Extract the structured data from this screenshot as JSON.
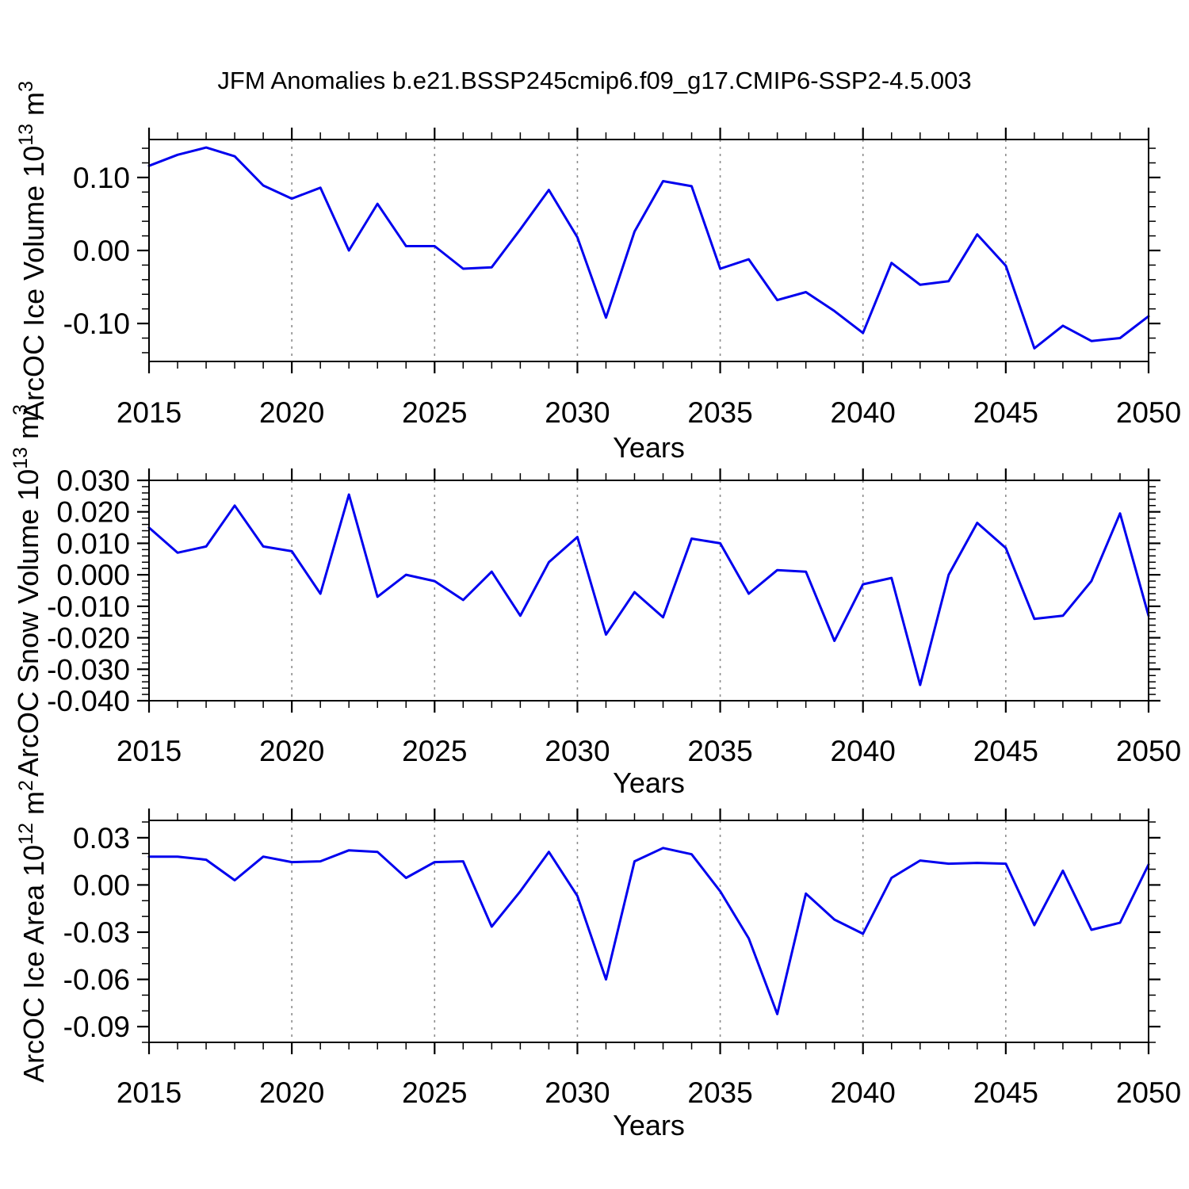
{
  "title": "JFM Anomalies b.e21.BSSP245cmip6.f09_g17.CMIP6-SSP2-4.5.003",
  "colors": {
    "line": "#0000EE",
    "grid": "#8C8C8C",
    "axis": "#000000"
  },
  "x_axis": {
    "label": "Years",
    "range": [
      2015,
      2050
    ],
    "years": [
      2015,
      2016,
      2017,
      2018,
      2019,
      2020,
      2021,
      2022,
      2023,
      2024,
      2025,
      2026,
      2027,
      2028,
      2029,
      2030,
      2031,
      2032,
      2033,
      2034,
      2035,
      2036,
      2037,
      2038,
      2039,
      2040,
      2041,
      2042,
      2043,
      2044,
      2045,
      2046,
      2047,
      2048,
      2049,
      2050
    ],
    "major_tick_years": [
      2015,
      2020,
      2025,
      2030,
      2035,
      2040,
      2045,
      2050
    ],
    "tick_labels": [
      "2015",
      "2020",
      "2025",
      "2030",
      "2035",
      "2040",
      "2045",
      "2050"
    ],
    "minor_tick_step": 1,
    "grid_years": [
      2020,
      2025,
      2030,
      2035,
      2040,
      2045
    ]
  },
  "chart_data": [
    {
      "id": "ice-volume",
      "type": "line",
      "xlabel": "Years",
      "ylabel": "ArcOC Ice Volume 10^13 m^3",
      "ylabel_rich": [
        [
          "ArcOC Ice Volume 10",
          false
        ],
        [
          "13",
          true
        ],
        [
          " m",
          false
        ],
        [
          "3",
          true
        ]
      ],
      "line_color": "#0000EE",
      "grid_on": true,
      "ylim": [
        -0.152,
        0.152
      ],
      "y_minor_step": 0.02,
      "yticks": [
        {
          "v": 0.1,
          "label": "0.10"
        },
        {
          "v": 0.0,
          "label": "0.00"
        },
        {
          "v": -0.1,
          "label": "-0.10"
        }
      ],
      "values": [
        0.116,
        0.131,
        0.141,
        0.129,
        0.089,
        0.071,
        0.086,
        0.0,
        0.064,
        0.006,
        0.006,
        -0.025,
        -0.023,
        0.029,
        0.083,
        0.018,
        -0.092,
        0.026,
        0.095,
        0.088,
        -0.025,
        -0.012,
        -0.068,
        -0.057,
        -0.083,
        -0.113,
        -0.017,
        -0.047,
        -0.042,
        0.022,
        -0.021,
        -0.134,
        -0.103,
        -0.124,
        -0.12,
        -0.09
      ]
    },
    {
      "id": "snow-volume",
      "type": "line",
      "xlabel": "Years",
      "ylabel": "ArcOC Snow Volume 10^13 m^3",
      "ylabel_rich": [
        [
          "ArcOC Snow Volume 10",
          false
        ],
        [
          "13",
          true
        ],
        [
          " m",
          false
        ],
        [
          "3",
          true
        ]
      ],
      "line_color": "#0000EE",
      "grid_on": true,
      "ylim": [
        -0.04,
        0.03
      ],
      "y_minor_step": 0.002,
      "yticks": [
        {
          "v": 0.03,
          "label": "0.030"
        },
        {
          "v": 0.02,
          "label": "0.020"
        },
        {
          "v": 0.01,
          "label": "0.010"
        },
        {
          "v": 0.0,
          "label": "0.000"
        },
        {
          "v": -0.01,
          "label": "-0.010"
        },
        {
          "v": -0.02,
          "label": "-0.020"
        },
        {
          "v": -0.03,
          "label": "-0.030"
        },
        {
          "v": -0.04,
          "label": "-0.040"
        }
      ],
      "values": [
        0.015,
        0.007,
        0.009,
        0.022,
        0.009,
        0.0075,
        -0.006,
        0.0255,
        -0.007,
        0.0,
        -0.002,
        -0.008,
        0.001,
        -0.013,
        0.004,
        0.012,
        -0.019,
        -0.0055,
        -0.0135,
        0.0115,
        0.01,
        -0.006,
        0.0015,
        0.001,
        -0.021,
        -0.003,
        -0.001,
        -0.035,
        0.0,
        0.0165,
        0.0085,
        -0.014,
        -0.013,
        -0.002,
        0.0195,
        -0.013
      ]
    },
    {
      "id": "ice-area",
      "type": "line",
      "xlabel": "Years",
      "ylabel": "ArcOC Ice Area 10^12 m^2",
      "ylabel_rich": [
        [
          "ArcOC Ice Area 10",
          false
        ],
        [
          "12",
          true
        ],
        [
          " m",
          false
        ],
        [
          "2",
          true
        ]
      ],
      "line_color": "#0000EE",
      "grid_on": true,
      "ylim": [
        -0.1,
        0.041
      ],
      "y_minor_step": 0.01,
      "yticks": [
        {
          "v": 0.03,
          "label": "0.03"
        },
        {
          "v": 0.0,
          "label": "0.00"
        },
        {
          "v": -0.03,
          "label": "-0.03"
        },
        {
          "v": -0.06,
          "label": "-0.06"
        },
        {
          "v": -0.09,
          "label": "-0.09"
        }
      ],
      "values": [
        0.018,
        0.018,
        0.016,
        0.003,
        0.018,
        0.0145,
        0.015,
        0.022,
        0.021,
        0.0045,
        0.0145,
        0.015,
        -0.0265,
        -0.004,
        0.021,
        -0.007,
        -0.06,
        0.015,
        0.0235,
        0.0195,
        -0.004,
        -0.034,
        -0.082,
        -0.0055,
        -0.022,
        -0.031,
        0.0045,
        0.0155,
        0.0135,
        0.014,
        0.0135,
        -0.0255,
        0.009,
        -0.0285,
        -0.024,
        0.013
      ]
    }
  ]
}
